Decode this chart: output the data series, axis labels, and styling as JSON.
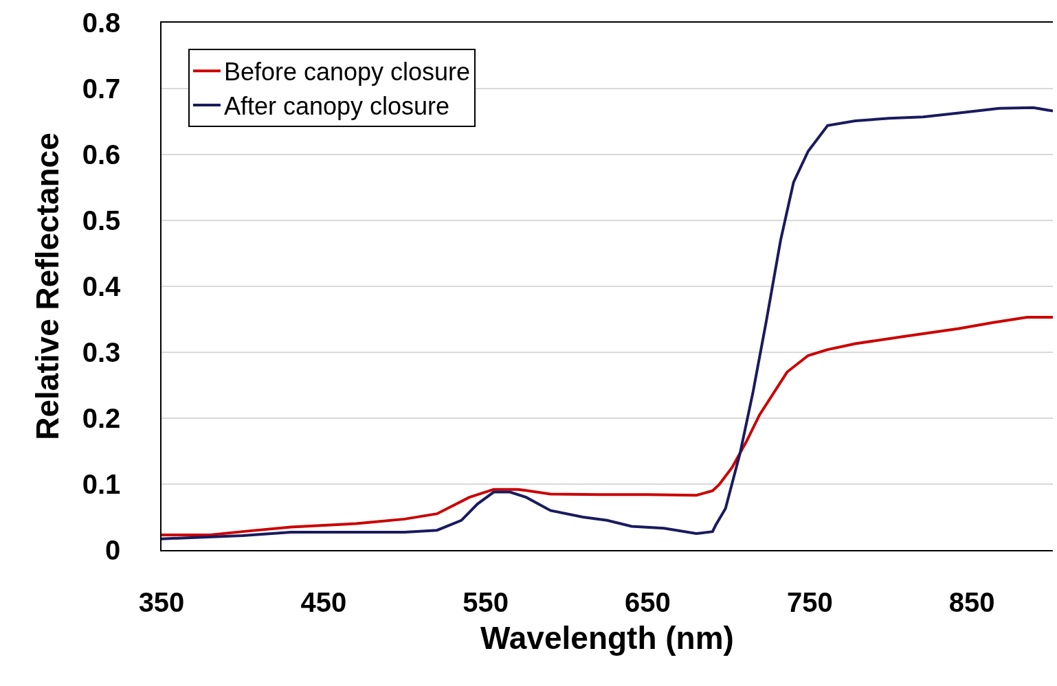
{
  "chart_data": {
    "type": "line",
    "xlabel": "Wavelength (nm)",
    "ylabel": "Relative Reflectance",
    "xlim": [
      350,
      900
    ],
    "xticks": [
      350,
      450,
      550,
      650,
      750,
      850
    ],
    "ylim": [
      0,
      0.8
    ],
    "yticks": [
      0,
      0.1,
      0.2,
      0.3,
      0.4,
      0.5,
      0.6,
      0.7,
      0.8
    ],
    "grid": "y",
    "legend": "top left",
    "line_style": "solid",
    "marker": "none",
    "series": [
      {
        "name": "Before canopy closure",
        "color": "#cc0000",
        "x": [
          350,
          380,
          400,
          430,
          470,
          500,
          520,
          540,
          555,
          570,
          590,
          620,
          650,
          680,
          690,
          694,
          702,
          711,
          719,
          736,
          749,
          761,
          778,
          808,
          842,
          863,
          884,
          900
        ],
        "values": [
          0.023,
          0.023,
          0.028,
          0.035,
          0.04,
          0.047,
          0.055,
          0.08,
          0.092,
          0.092,
          0.085,
          0.084,
          0.084,
          0.083,
          0.09,
          0.099,
          0.125,
          0.165,
          0.205,
          0.27,
          0.295,
          0.304,
          0.313,
          0.324,
          0.336,
          0.345,
          0.353,
          0.353
        ]
      },
      {
        "name": "After canopy closure",
        "color": "#1a1a5e",
        "x": [
          350,
          400,
          430,
          500,
          520,
          535,
          545,
          555,
          565,
          575,
          590,
          610,
          625,
          640,
          660,
          680,
          690,
          692,
          698,
          707,
          715,
          723,
          732,
          740,
          749,
          761,
          778,
          799,
          820,
          842,
          867,
          888,
          900
        ],
        "values": [
          0.017,
          0.022,
          0.027,
          0.027,
          0.03,
          0.045,
          0.07,
          0.088,
          0.088,
          0.08,
          0.06,
          0.05,
          0.045,
          0.036,
          0.033,
          0.025,
          0.028,
          0.038,
          0.063,
          0.147,
          0.24,
          0.345,
          0.47,
          0.558,
          0.605,
          0.644,
          0.651,
          0.655,
          0.657,
          0.663,
          0.67,
          0.671,
          0.666
        ]
      }
    ]
  }
}
